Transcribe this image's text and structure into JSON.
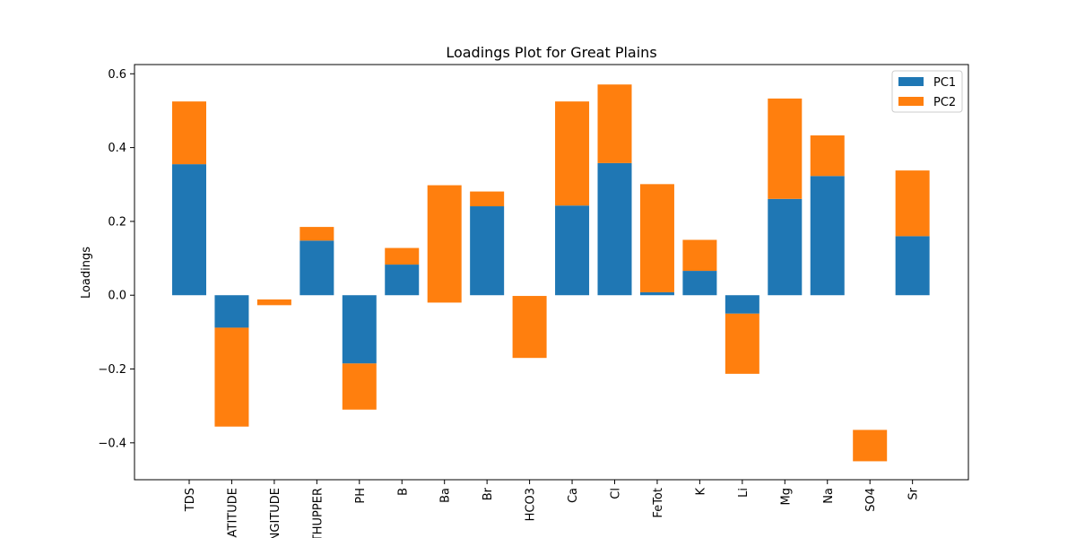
{
  "chart_data": {
    "type": "bar",
    "stacked": true,
    "title": "Loadings Plot for Great Plains",
    "xlabel": "",
    "ylabel": "Loadings",
    "ylim": [
      -0.5,
      0.625
    ],
    "yticks": [
      -0.4,
      -0.2,
      0.0,
      0.2,
      0.4,
      0.6
    ],
    "ytick_labels": [
      "−0.4",
      "−0.2",
      "0.0",
      "0.2",
      "0.4",
      "0.6"
    ],
    "categories": [
      "TDS",
      "LATITUDE",
      "LONGITUDE",
      "DEPTHUPPER",
      "PH",
      "B",
      "Ba",
      "Br",
      "HCO3",
      "Ca",
      "Cl",
      "FeTot",
      "K",
      "Li",
      "Mg",
      "Na",
      "SO4",
      "Sr"
    ],
    "series": [
      {
        "name": "PC1",
        "color": "#1f77b4",
        "values": [
          0.355,
          -0.088,
          0.0,
          0.148,
          -0.185,
          0.083,
          0.0,
          0.241,
          0.0,
          0.243,
          0.358,
          0.008,
          0.066,
          -0.05,
          0.261,
          0.323,
          0.0,
          0.16
        ]
      },
      {
        "name": "PC2",
        "color": "#ff7f0e",
        "values": [
          0.17,
          -0.268,
          0.0155,
          0.037,
          -0.125,
          0.045,
          0.318,
          0.04,
          0.168,
          0.282,
          0.213,
          0.293,
          0.084,
          -0.163,
          0.272,
          0.11,
          0.085,
          0.178
        ]
      }
    ],
    "floating_offsets": [
      0,
      0,
      -0.027,
      0,
      0,
      0,
      -0.02,
      0,
      -0.17,
      0,
      0,
      0,
      0,
      0,
      0,
      0,
      -0.45,
      0
    ],
    "legend_position": "top-right",
    "grid": false
  }
}
